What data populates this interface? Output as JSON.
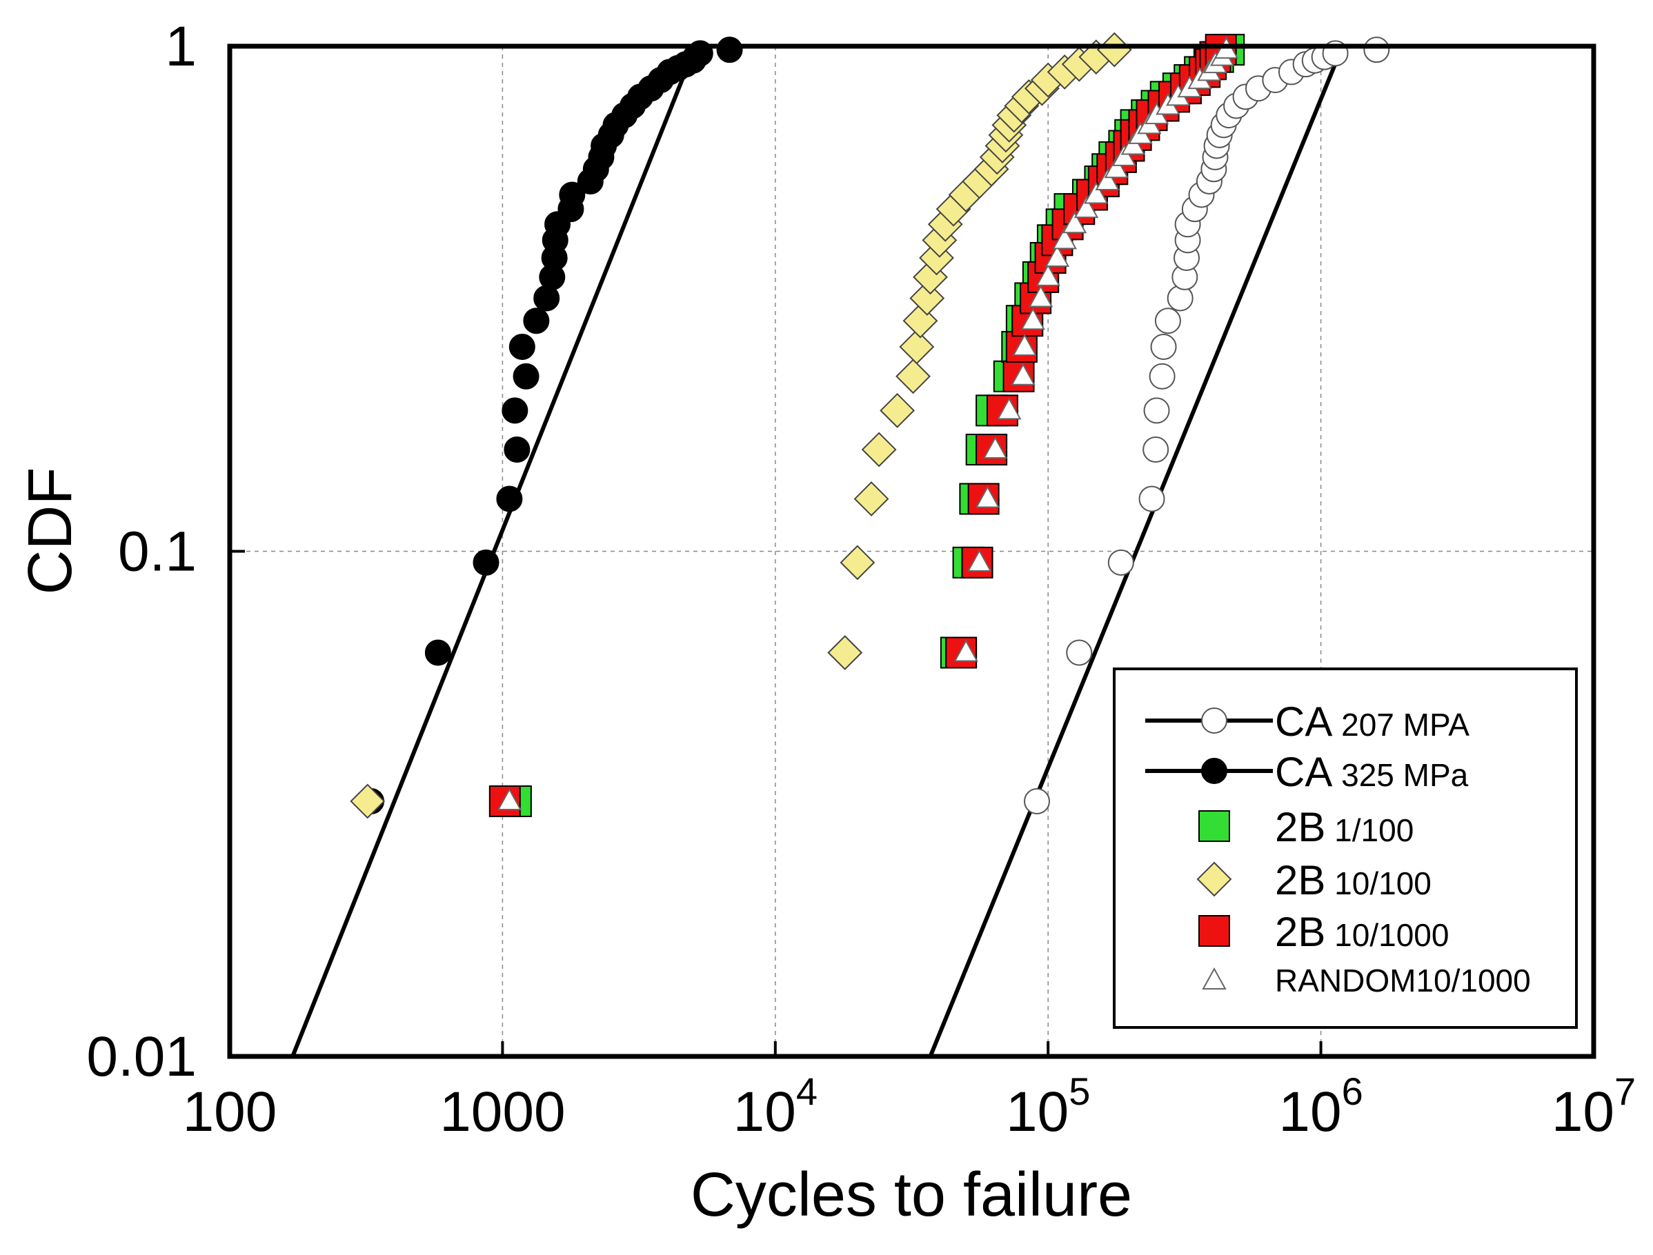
{
  "chart_data": {
    "type": "scatter",
    "title": "",
    "xlabel": "Cycles to failure",
    "ylabel": "CDF",
    "x_scale": "log",
    "y_scale": "log",
    "xlim": [
      100,
      10000000
    ],
    "ylim": [
      0.01,
      1
    ],
    "grid": true,
    "legend_position": "bottom-right",
    "x_ticks": [
      {
        "value": 100,
        "label": "100"
      },
      {
        "value": 1000,
        "label": "1000"
      },
      {
        "value": 10000,
        "base": "10",
        "exp": "4"
      },
      {
        "value": 100000,
        "base": "10",
        "exp": "5"
      },
      {
        "value": 1000000,
        "base": "10",
        "exp": "6"
      },
      {
        "value": 10000000,
        "base": "10",
        "exp": "7"
      }
    ],
    "y_ticks": [
      {
        "value": 0.01,
        "label": "0.01"
      },
      {
        "value": 0.1,
        "label": "0.1"
      },
      {
        "value": 1,
        "label": "1"
      }
    ],
    "fit_lines": [
      {
        "series": "CA 207 MPA",
        "points": [
          [
            37000,
            0.01
          ],
          [
            1200000,
            1
          ]
        ]
      },
      {
        "series": "CA 325 MPa",
        "points": [
          [
            170,
            0.01
          ],
          [
            5100,
            1
          ]
        ]
      }
    ],
    "series": [
      {
        "name": "CA 207 MPA",
        "marker": "open-circle",
        "color": "#ffffff",
        "edge": "#555555",
        "points": [
          [
            91000,
            0.032
          ],
          [
            130000,
            0.063
          ],
          [
            185000,
            0.095
          ],
          [
            240000,
            0.127
          ],
          [
            248000,
            0.159
          ],
          [
            250000,
            0.19
          ],
          [
            262000,
            0.222
          ],
          [
            265000,
            0.254
          ],
          [
            275000,
            0.286
          ],
          [
            305000,
            0.317
          ],
          [
            317000,
            0.349
          ],
          [
            322000,
            0.381
          ],
          [
            325000,
            0.413
          ],
          [
            325000,
            0.444
          ],
          [
            345000,
            0.476
          ],
          [
            365000,
            0.508
          ],
          [
            390000,
            0.54
          ],
          [
            405000,
            0.571
          ],
          [
            410000,
            0.603
          ],
          [
            415000,
            0.635
          ],
          [
            425000,
            0.667
          ],
          [
            440000,
            0.698
          ],
          [
            460000,
            0.73
          ],
          [
            490000,
            0.762
          ],
          [
            530000,
            0.794
          ],
          [
            590000,
            0.825
          ],
          [
            680000,
            0.857
          ],
          [
            780000,
            0.889
          ],
          [
            880000,
            0.921
          ],
          [
            950000,
            0.937
          ],
          [
            1030000,
            0.952
          ],
          [
            1130000,
            0.968
          ],
          [
            1600000,
            0.984
          ]
        ]
      },
      {
        "name": "CA 325 MPa",
        "marker": "filled-circle",
        "color": "#000000",
        "edge": "#000000",
        "points": [
          [
            330,
            0.032
          ],
          [
            580,
            0.063
          ],
          [
            870,
            0.095
          ],
          [
            1060,
            0.127
          ],
          [
            1130,
            0.159
          ],
          [
            1110,
            0.19
          ],
          [
            1220,
            0.222
          ],
          [
            1180,
            0.254
          ],
          [
            1330,
            0.286
          ],
          [
            1450,
            0.317
          ],
          [
            1520,
            0.349
          ],
          [
            1550,
            0.381
          ],
          [
            1560,
            0.413
          ],
          [
            1590,
            0.444
          ],
          [
            1780,
            0.476
          ],
          [
            1800,
            0.508
          ],
          [
            2100,
            0.54
          ],
          [
            2200,
            0.571
          ],
          [
            2300,
            0.603
          ],
          [
            2350,
            0.635
          ],
          [
            2500,
            0.667
          ],
          [
            2600,
            0.698
          ],
          [
            2800,
            0.73
          ],
          [
            3000,
            0.762
          ],
          [
            3200,
            0.794
          ],
          [
            3500,
            0.825
          ],
          [
            3800,
            0.857
          ],
          [
            4100,
            0.889
          ],
          [
            4400,
            0.905
          ],
          [
            4700,
            0.921
          ],
          [
            5000,
            0.937
          ],
          [
            5100,
            0.952
          ],
          [
            5300,
            0.968
          ],
          [
            6800,
            0.984
          ]
        ]
      },
      {
        "name": "2B 1/100",
        "marker": "square",
        "color": "#33dd33",
        "edge": "#000000",
        "points": [
          [
            1120,
            0.032
          ],
          [
            46000,
            0.063
          ],
          [
            51000,
            0.095
          ],
          [
            54000,
            0.127
          ],
          [
            57000,
            0.159
          ],
          [
            62000,
            0.19
          ],
          [
            72000,
            0.222
          ],
          [
            77000,
            0.254
          ],
          [
            80000,
            0.286
          ],
          [
            86000,
            0.317
          ],
          [
            92000,
            0.349
          ],
          [
            98000,
            0.381
          ],
          [
            104000,
            0.413
          ],
          [
            112000,
            0.444
          ],
          [
            120000,
            0.476
          ],
          [
            140000,
            0.508
          ],
          [
            155000,
            0.54
          ],
          [
            165000,
            0.571
          ],
          [
            175000,
            0.603
          ],
          [
            190000,
            0.635
          ],
          [
            200000,
            0.667
          ],
          [
            210000,
            0.698
          ],
          [
            230000,
            0.73
          ],
          [
            250000,
            0.762
          ],
          [
            270000,
            0.794
          ],
          [
            300000,
            0.825
          ],
          [
            330000,
            0.857
          ],
          [
            360000,
            0.889
          ],
          [
            390000,
            0.921
          ],
          [
            420000,
            0.952
          ],
          [
            460000,
            0.984
          ]
        ]
      },
      {
        "name": "2B 10/100",
        "marker": "diamond",
        "color": "#f5ec8f",
        "edge": "#444444",
        "points": [
          [
            320,
            0.032
          ],
          [
            18000,
            0.063
          ],
          [
            20000,
            0.095
          ],
          [
            22500,
            0.127
          ],
          [
            24000,
            0.159
          ],
          [
            28000,
            0.19
          ],
          [
            32000,
            0.222
          ],
          [
            33000,
            0.254
          ],
          [
            34000,
            0.286
          ],
          [
            36000,
            0.317
          ],
          [
            37000,
            0.349
          ],
          [
            39000,
            0.381
          ],
          [
            40000,
            0.413
          ],
          [
            42000,
            0.444
          ],
          [
            45000,
            0.476
          ],
          [
            50000,
            0.508
          ],
          [
            56000,
            0.54
          ],
          [
            62000,
            0.571
          ],
          [
            65000,
            0.603
          ],
          [
            68000,
            0.635
          ],
          [
            70000,
            0.667
          ],
          [
            72000,
            0.698
          ],
          [
            75000,
            0.73
          ],
          [
            80000,
            0.762
          ],
          [
            85000,
            0.794
          ],
          [
            95000,
            0.825
          ],
          [
            100000,
            0.857
          ],
          [
            115000,
            0.889
          ],
          [
            130000,
            0.921
          ],
          [
            150000,
            0.952
          ],
          [
            175000,
            0.984
          ]
        ]
      },
      {
        "name": "2B 10/1000",
        "marker": "square",
        "color": "#ee1111",
        "edge": "#000000",
        "points": [
          [
            1020,
            0.032
          ],
          [
            48000,
            0.063
          ],
          [
            55000,
            0.095
          ],
          [
            58000,
            0.127
          ],
          [
            62000,
            0.159
          ],
          [
            68000,
            0.19
          ],
          [
            78000,
            0.222
          ],
          [
            80000,
            0.254
          ],
          [
            84000,
            0.286
          ],
          [
            90000,
            0.317
          ],
          [
            96000,
            0.349
          ],
          [
            102000,
            0.381
          ],
          [
            108000,
            0.413
          ],
          [
            118000,
            0.444
          ],
          [
            130000,
            0.476
          ],
          [
            145000,
            0.508
          ],
          [
            160000,
            0.54
          ],
          [
            172000,
            0.571
          ],
          [
            185000,
            0.603
          ],
          [
            198000,
            0.635
          ],
          [
            210000,
            0.667
          ],
          [
            225000,
            0.698
          ],
          [
            240000,
            0.73
          ],
          [
            265000,
            0.762
          ],
          [
            290000,
            0.794
          ],
          [
            320000,
            0.825
          ],
          [
            345000,
            0.857
          ],
          [
            375000,
            0.889
          ],
          [
            395000,
            0.921
          ],
          [
            410000,
            0.952
          ],
          [
            430000,
            0.984
          ]
        ]
      },
      {
        "name": "RANDOM10/1000",
        "marker": "triangle",
        "color": "#ffffff",
        "edge": "#666666",
        "points": [
          [
            1060,
            0.032
          ],
          [
            50000,
            0.063
          ],
          [
            56000,
            0.095
          ],
          [
            60000,
            0.127
          ],
          [
            64000,
            0.159
          ],
          [
            72000,
            0.19
          ],
          [
            81000,
            0.222
          ],
          [
            82000,
            0.254
          ],
          [
            88000,
            0.286
          ],
          [
            94000,
            0.317
          ],
          [
            100000,
            0.349
          ],
          [
            108000,
            0.381
          ],
          [
            115000,
            0.413
          ],
          [
            125000,
            0.444
          ],
          [
            138000,
            0.476
          ],
          [
            150000,
            0.508
          ],
          [
            165000,
            0.54
          ],
          [
            178000,
            0.571
          ],
          [
            190000,
            0.603
          ],
          [
            205000,
            0.635
          ],
          [
            218000,
            0.667
          ],
          [
            235000,
            0.698
          ],
          [
            250000,
            0.73
          ],
          [
            275000,
            0.762
          ],
          [
            300000,
            0.794
          ],
          [
            330000,
            0.825
          ],
          [
            360000,
            0.857
          ],
          [
            390000,
            0.889
          ],
          [
            410000,
            0.921
          ],
          [
            435000,
            0.952
          ],
          [
            450000,
            0.984
          ]
        ]
      }
    ],
    "legend": [
      {
        "main": "CA",
        "sub": " 207 MPA",
        "marker": "open-circle",
        "line": true
      },
      {
        "main": "CA",
        "sub": " 325 MPa",
        "marker": "filled-circle",
        "line": true
      },
      {
        "main": "2B",
        "sub": " 1/100",
        "marker": "square-green",
        "line": false
      },
      {
        "main": "2B",
        "sub": " 10/100",
        "marker": "diamond",
        "line": false
      },
      {
        "main": "2B",
        "sub": " 10/1000",
        "marker": "square-red",
        "line": false
      },
      {
        "main": "",
        "sub": "RANDOM10/1000",
        "marker": "triangle",
        "line": false
      }
    ]
  }
}
